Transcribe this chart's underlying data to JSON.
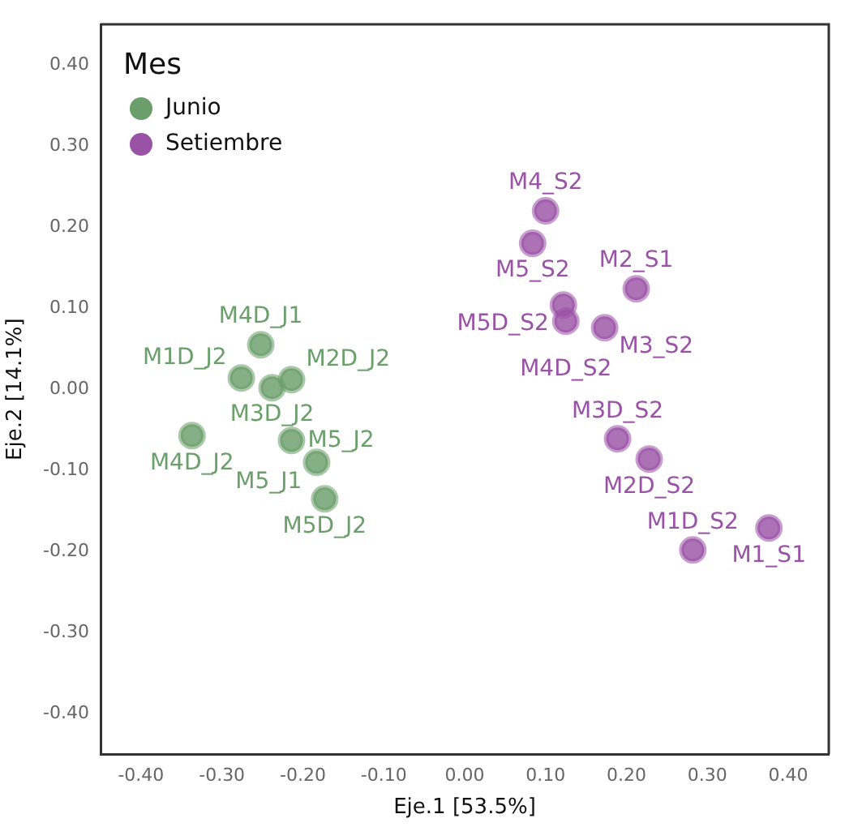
{
  "chart_data": {
    "type": "scatter",
    "xlabel": "Eje.1 [53.5%]",
    "ylabel": "Eje.2 [14.1%]",
    "legend_title": "Mes",
    "legend": "top left",
    "grid": false,
    "marker": "circle",
    "xlim": [
      -0.45,
      0.45
    ],
    "ylim": [
      -0.45,
      0.45
    ],
    "xticks": [
      {
        "value": -0.4,
        "label": "-0.40"
      },
      {
        "value": -0.3,
        "label": "-0.30"
      },
      {
        "value": -0.2,
        "label": "-0.20"
      },
      {
        "value": -0.1,
        "label": "-0.10"
      },
      {
        "value": 0,
        "label": "0.00"
      },
      {
        "value": 0.1,
        "label": "0.10"
      },
      {
        "value": 0.2,
        "label": "0.20"
      },
      {
        "value": 0.3,
        "label": "0.30"
      },
      {
        "value": 0.4,
        "label": "0.40"
      }
    ],
    "yticks": [
      {
        "value": -0.4,
        "label": "-0.40"
      },
      {
        "value": -0.3,
        "label": "-0.30"
      },
      {
        "value": -0.2,
        "label": "-0.20"
      },
      {
        "value": -0.1,
        "label": "-0.10"
      },
      {
        "value": 0,
        "label": "0.00"
      },
      {
        "value": 0.1,
        "label": "0.10"
      },
      {
        "value": 0.2,
        "label": "0.20"
      },
      {
        "value": 0.3,
        "label": "0.30"
      },
      {
        "value": 0.4,
        "label": "0.40"
      }
    ],
    "series": [
      {
        "name": "Junio",
        "color": "#6a9e6a",
        "x": [
          -0.252,
          -0.276,
          -0.214,
          -0.238,
          -0.337,
          -0.214,
          -0.183,
          -0.173
        ],
        "values": [
          0.055,
          0.014,
          0.012,
          0.002,
          -0.057,
          -0.063,
          -0.09,
          -0.135
        ]
      },
      {
        "name": "Setiembre",
        "color": "#9a52a6",
        "x": [
          0.1,
          0.084,
          0.212,
          0.122,
          0.125,
          0.173,
          0.189,
          0.228,
          0.282,
          0.376
        ],
        "values": [
          0.22,
          0.18,
          0.124,
          0.104,
          0.084,
          0.076,
          -0.061,
          -0.086,
          -0.198,
          -0.171
        ]
      }
    ],
    "annotations": [
      {
        "text": "M4D_J1",
        "x": -0.252,
        "y": 0.055
      },
      {
        "text": "M1D_J2",
        "x": -0.276,
        "y": 0.014
      },
      {
        "text": "M2D_J2",
        "x": -0.214,
        "y": 0.012
      },
      {
        "text": "M3D_J2",
        "x": -0.238,
        "y": 0.002
      },
      {
        "text": "M4D_J2",
        "x": -0.337,
        "y": -0.057
      },
      {
        "text": "M5_J2",
        "x": -0.214,
        "y": -0.063
      },
      {
        "text": "M5_J1",
        "x": -0.183,
        "y": -0.09
      },
      {
        "text": "M5D_J2",
        "x": -0.173,
        "y": -0.135
      },
      {
        "text": "M4_S2",
        "x": 0.1,
        "y": 0.22
      },
      {
        "text": "M5_S2",
        "x": 0.084,
        "y": 0.18
      },
      {
        "text": "M2_S1",
        "x": 0.212,
        "y": 0.124
      },
      {
        "text": "M5D_S2",
        "x": 0.122,
        "y": 0.104
      },
      {
        "text": "M4D_S2",
        "x": 0.125,
        "y": 0.084
      },
      {
        "text": "M3_S2",
        "x": 0.173,
        "y": 0.076
      },
      {
        "text": "M3D_S2",
        "x": 0.189,
        "y": -0.061
      },
      {
        "text": "M2D_S2",
        "x": 0.228,
        "y": -0.086
      },
      {
        "text": "M1D_S2",
        "x": 0.282,
        "y": -0.198
      },
      {
        "text": "M1_S1",
        "x": 0.376,
        "y": -0.171
      }
    ]
  }
}
